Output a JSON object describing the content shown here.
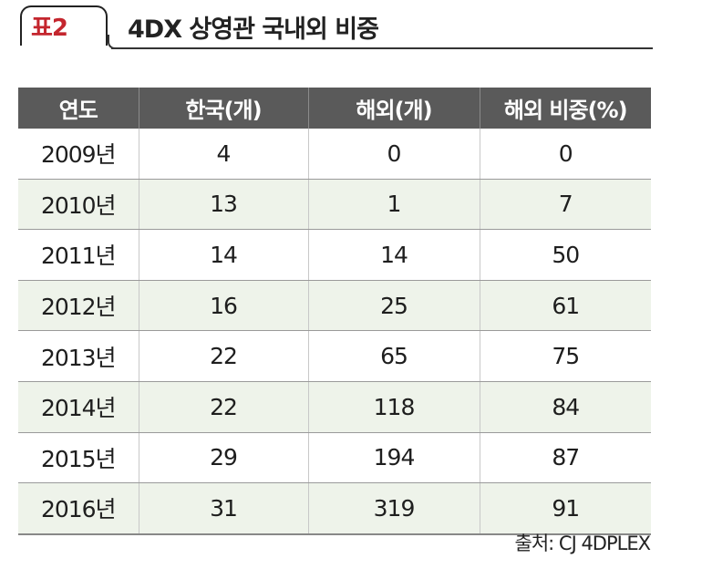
{
  "header": {
    "tag": "표2",
    "title": "4DX 상영관 국내외 비중"
  },
  "table": {
    "columns": [
      "연도",
      "한국(개)",
      "해외(개)",
      "해외 비중(%)"
    ],
    "rows": [
      [
        "2009년",
        "4",
        "0",
        "0"
      ],
      [
        "2010년",
        "13",
        "1",
        "7"
      ],
      [
        "2011년",
        "14",
        "14",
        "50"
      ],
      [
        "2012년",
        "16",
        "25",
        "61"
      ],
      [
        "2013년",
        "22",
        "65",
        "75"
      ],
      [
        "2014년",
        "22",
        "118",
        "84"
      ],
      [
        "2015년",
        "29",
        "194",
        "87"
      ],
      [
        "2016년",
        "31",
        "319",
        "91"
      ]
    ]
  },
  "footer": {
    "source": "출처: CJ 4DPLEX"
  },
  "colors": {
    "tag": "#c4262e",
    "header_bg": "#5a5a5a",
    "stripe": "#eef3ea"
  }
}
